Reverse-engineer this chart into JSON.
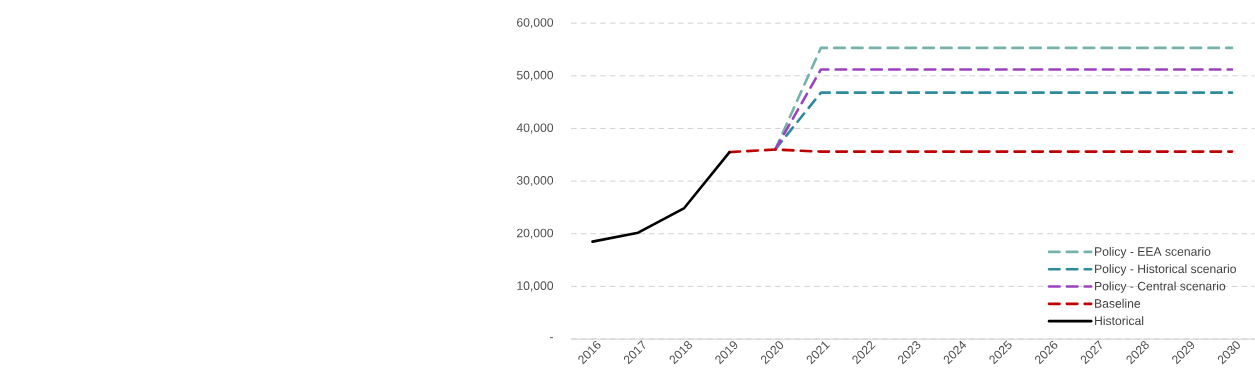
{
  "chart_data": {
    "type": "line",
    "categories": [
      "2016",
      "2017",
      "2018",
      "2019",
      "2020",
      "2021",
      "2022",
      "2023",
      "2024",
      "2025",
      "2026",
      "2027",
      "2028",
      "2029",
      "2030"
    ],
    "series": [
      {
        "name": "Policy - EEA scenario",
        "color": "#77b1ab",
        "line_style": "dashed",
        "values": [
          null,
          null,
          null,
          null,
          36000,
          55300,
          55300,
          55300,
          55300,
          55300,
          55300,
          55300,
          55300,
          55300,
          55300
        ]
      },
      {
        "name": "Policy - Historical scenario",
        "color": "#2e8b9e",
        "line_style": "dashed",
        "values": [
          null,
          null,
          null,
          null,
          36000,
          46800,
          46800,
          46800,
          46800,
          46800,
          46800,
          46800,
          46800,
          46800,
          46800
        ]
      },
      {
        "name": "Policy - Central scenario",
        "color": "#9b42bd",
        "line_style": "dashed",
        "values": [
          null,
          null,
          null,
          null,
          36000,
          51200,
          51200,
          51200,
          51200,
          51200,
          51200,
          51200,
          51200,
          51200,
          51200
        ]
      },
      {
        "name": "Baseline",
        "color": "#c00000",
        "line_style": "dashed",
        "values": [
          null,
          null,
          null,
          35500,
          36000,
          35600,
          35600,
          35600,
          35600,
          35600,
          35600,
          35600,
          35600,
          35600,
          35600
        ]
      },
      {
        "name": "Historical",
        "color": "#000000",
        "line_style": "solid",
        "values": [
          18500,
          20200,
          24800,
          35500,
          null,
          null,
          null,
          null,
          null,
          null,
          null,
          null,
          null,
          null,
          null
        ]
      }
    ],
    "ylim": [
      0,
      60000
    ],
    "yticks": [
      {
        "value": 0,
        "label": "-"
      },
      {
        "value": 10000,
        "label": "10,000"
      },
      {
        "value": 20000,
        "label": "20,000"
      },
      {
        "value": 30000,
        "label": "30,000"
      },
      {
        "value": 40000,
        "label": "40,000"
      },
      {
        "value": 50000,
        "label": "50,000"
      },
      {
        "value": 60000,
        "label": "60,000"
      }
    ],
    "grid": "y",
    "legend": "bottom right",
    "marker": "none"
  }
}
